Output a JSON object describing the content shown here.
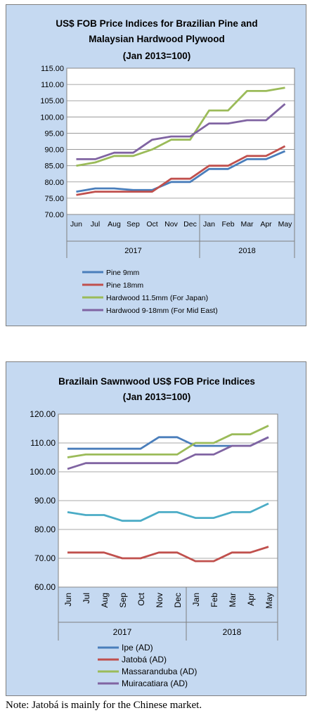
{
  "chart_data": [
    {
      "type": "line",
      "title": "US$ FOB Price Indices for Brazilian Pine and",
      "subtitle": "Malaysian Hardwood Plywood",
      "subtitle2": "(Jan 2013=100)",
      "categories": [
        "Jun",
        "Jul",
        "Aug",
        "Sep",
        "Oct",
        "Nov",
        "Dec",
        "Jan",
        "Feb",
        "Mar",
        "Apr",
        "May"
      ],
      "year_groups": [
        {
          "label": "2017",
          "start": 0,
          "end": 6
        },
        {
          "label": "2018",
          "start": 7,
          "end": 11
        }
      ],
      "ylim": [
        70,
        115
      ],
      "yticks": [
        "70.00",
        "75.00",
        "80.00",
        "85.00",
        "90.00",
        "95.00",
        "100.00",
        "105.00",
        "110.00",
        "115.00"
      ],
      "grid": true,
      "legend_position": "bottom",
      "series": [
        {
          "name": "Pine 9mm",
          "color": "#4a7ebb",
          "values": [
            77,
            78,
            78,
            77.5,
            77.5,
            80,
            80,
            84,
            84,
            87,
            87,
            89.5
          ]
        },
        {
          "name": "Pine 18mm",
          "color": "#c0504d",
          "values": [
            76,
            77,
            77,
            77,
            77,
            81,
            81,
            85,
            85,
            88,
            88,
            91
          ]
        },
        {
          "name": "Hardwood 11.5mm (For Japan)",
          "color": "#9bbb59",
          "values": [
            85,
            86,
            88,
            88,
            90,
            93,
            93,
            102,
            102,
            108,
            108,
            109
          ]
        },
        {
          "name": "Hardwood 9-18mm (For Mid East)",
          "color": "#8064a2",
          "values": [
            87,
            87,
            89,
            89,
            93,
            94,
            94,
            98,
            98,
            99,
            99,
            104
          ]
        }
      ]
    },
    {
      "type": "line",
      "title": "Brazilain Sawnwood US$ FOB Price Indices",
      "subtitle": "(Jan 2013=100)",
      "categories": [
        "Jun",
        "Jul",
        "Aug",
        "Sep",
        "Oct",
        "Nov",
        "Dec",
        "Jan",
        "Feb",
        "Mar",
        "Apr",
        "May"
      ],
      "year_groups": [
        {
          "label": "2017",
          "start": 0,
          "end": 6
        },
        {
          "label": "2018",
          "start": 7,
          "end": 11
        }
      ],
      "ylim": [
        60,
        120
      ],
      "yticks": [
        "60.00",
        "70.00",
        "80.00",
        "90.00",
        "100.00",
        "110.00",
        "120.00"
      ],
      "grid": true,
      "legend_position": "bottom",
      "series": [
        {
          "name": "Ipe (AD)",
          "color": "#4a7ebb",
          "values": [
            108,
            108,
            108,
            108,
            108,
            112,
            112,
            109,
            109,
            109,
            109,
            112
          ]
        },
        {
          "name": "Jatobá (AD)",
          "color": "#c0504d",
          "values": [
            72,
            72,
            72,
            70,
            70,
            72,
            72,
            69,
            69,
            72,
            72,
            74
          ]
        },
        {
          "name": "Massaranduba (AD)",
          "color": "#9bbb59",
          "values": [
            105,
            106,
            106,
            106,
            106,
            106,
            106,
            110,
            110,
            113,
            113,
            116
          ]
        },
        {
          "name": "Muiracatiara (AD)",
          "color": "#8064a2",
          "values": [
            101,
            103,
            103,
            103,
            103,
            103,
            103,
            106,
            106,
            109,
            109,
            112
          ]
        },
        {
          "name": "",
          "color": "#4bacc6",
          "values": [
            86,
            85,
            85,
            83,
            83,
            86,
            86,
            84,
            84,
            86,
            86,
            89
          ]
        }
      ]
    }
  ],
  "note": "Note: Jatobá is mainly for the Chinese market."
}
